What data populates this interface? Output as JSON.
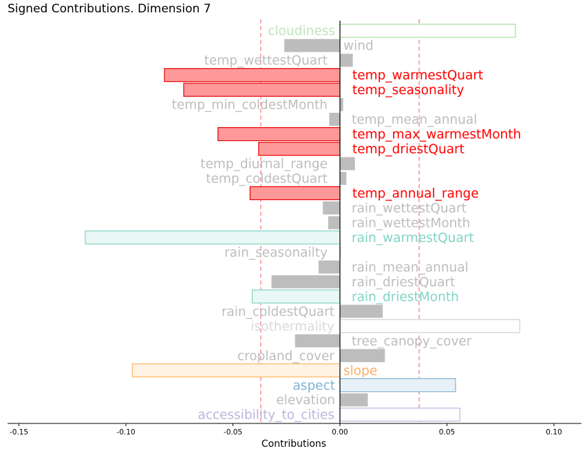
{
  "chart_data": {
    "type": "bar",
    "orientation": "horizontal",
    "title": "Signed Contributions. Dimension 7",
    "xlabel": "Contributions",
    "ylabel": "",
    "xlim": [
      -0.155,
      0.113
    ],
    "xticks": [
      "-0.15",
      "-0.10",
      "-0.05",
      "0.00",
      "0.05",
      "0.10"
    ],
    "xtick_values": [
      -0.15,
      -0.1,
      -0.05,
      0.0,
      0.05,
      0.1
    ],
    "threshold_lines": [
      -0.037,
      0.037
    ],
    "threshold_color": "#f08080",
    "grid": false,
    "bars": [
      {
        "label": "cloudiness",
        "value": 0.082,
        "style": "outline",
        "color": "#a8dca0",
        "fill": "#ffffff",
        "label_color": "#c0e4bb"
      },
      {
        "label": "wind",
        "value": -0.026,
        "style": "gray",
        "color": "#bdbdbd",
        "fill": "#bdbdbd",
        "label_color": "#bdbdbd"
      },
      {
        "label": "temp_wettestQuart",
        "value": 0.006,
        "style": "gray",
        "color": "#bdbdbd",
        "fill": "#bdbdbd",
        "label_color": "#bdbdbd"
      },
      {
        "label": "temp_warmestQuart",
        "value": -0.082,
        "style": "highlight",
        "color": "#e60000",
        "fill": "#ff9999",
        "label_color": "#ff0000"
      },
      {
        "label": "temp_seasonality",
        "value": -0.073,
        "style": "highlight",
        "color": "#e60000",
        "fill": "#ff9999",
        "label_color": "#ff0000"
      },
      {
        "label": "temp_min_coldestMonth",
        "value": 0.0015,
        "style": "gray",
        "color": "#bdbdbd",
        "fill": "#bdbdbd",
        "label_color": "#bdbdbd"
      },
      {
        "label": "temp_mean_annual",
        "value": -0.005,
        "style": "gray",
        "color": "#bdbdbd",
        "fill": "#bdbdbd",
        "label_color": "#bdbdbd"
      },
      {
        "label": "temp_max_warmestMonth",
        "value": -0.057,
        "style": "highlight",
        "color": "#e60000",
        "fill": "#ff9999",
        "label_color": "#ff0000"
      },
      {
        "label": "temp_driestQuart",
        "value": -0.038,
        "style": "highlight",
        "color": "#e60000",
        "fill": "#ff9999",
        "label_color": "#ff0000"
      },
      {
        "label": "temp_diurnal_range",
        "value": 0.007,
        "style": "gray",
        "color": "#bdbdbd",
        "fill": "#bdbdbd",
        "label_color": "#bdbdbd"
      },
      {
        "label": "temp_coldestQuart",
        "value": 0.003,
        "style": "gray",
        "color": "#bdbdbd",
        "fill": "#bdbdbd",
        "label_color": "#bdbdbd"
      },
      {
        "label": "temp_annual_range",
        "value": -0.042,
        "style": "highlight",
        "color": "#e60000",
        "fill": "#ff9999",
        "label_color": "#ff0000"
      },
      {
        "label": "rain_wettestQuart",
        "value": -0.008,
        "style": "gray",
        "color": "#bdbdbd",
        "fill": "#bdbdbd",
        "label_color": "#bdbdbd"
      },
      {
        "label": "rain_wettestMonth",
        "value": -0.0055,
        "style": "gray",
        "color": "#bdbdbd",
        "fill": "#bdbdbd",
        "label_color": "#bdbdbd"
      },
      {
        "label": "rain_warmestQuart",
        "value": -0.119,
        "style": "outline",
        "color": "#7fd4c4",
        "fill": "#e9f8f5",
        "label_color": "#7fd4c4"
      },
      {
        "label": "rain_seasonailty",
        "value": 0.0003,
        "style": "gray",
        "color": "#bdbdbd",
        "fill": "#bdbdbd",
        "label_color": "#bdbdbd"
      },
      {
        "label": "rain_mean_annual",
        "value": -0.01,
        "style": "gray",
        "color": "#bdbdbd",
        "fill": "#bdbdbd",
        "label_color": "#bdbdbd"
      },
      {
        "label": "rain_driestQuart",
        "value": -0.032,
        "style": "gray",
        "color": "#bdbdbd",
        "fill": "#bdbdbd",
        "label_color": "#bdbdbd"
      },
      {
        "label": "rain_driestMonth",
        "value": -0.041,
        "style": "outline",
        "color": "#7fd4c4",
        "fill": "#e9f8f5",
        "label_color": "#7fd4c4"
      },
      {
        "label": "rain_coldestQuart",
        "value": 0.02,
        "style": "gray",
        "color": "#bdbdbd",
        "fill": "#bdbdbd",
        "label_color": "#bdbdbd"
      },
      {
        "label": "isothermality",
        "value": 0.084,
        "style": "outline",
        "color": "#d0d0d0",
        "fill": "#ffffff",
        "label_color": "#d9d9d9"
      },
      {
        "label": "tree_canopy_cover",
        "value": -0.021,
        "style": "gray",
        "color": "#bdbdbd",
        "fill": "#bdbdbd",
        "label_color": "#bdbdbd"
      },
      {
        "label": "cropland_cover",
        "value": 0.021,
        "style": "gray",
        "color": "#bdbdbd",
        "fill": "#bdbdbd",
        "label_color": "#bdbdbd"
      },
      {
        "label": "slope",
        "value": -0.097,
        "style": "outline",
        "color": "#fdb462",
        "fill": "#fff3e3",
        "label_color": "#fdae61"
      },
      {
        "label": "aspect",
        "value": 0.054,
        "style": "outline",
        "color": "#7fb3d5",
        "fill": "#e8f1f8",
        "label_color": "#7fb3d5"
      },
      {
        "label": "elevation",
        "value": 0.013,
        "style": "gray",
        "color": "#bdbdbd",
        "fill": "#bdbdbd",
        "label_color": "#bdbdbd"
      },
      {
        "label": "accessibility_to_cities",
        "value": 0.056,
        "style": "outline",
        "color": "#bcb4dc",
        "fill": "#ffffff",
        "label_color": "#bcb4dc"
      }
    ]
  }
}
